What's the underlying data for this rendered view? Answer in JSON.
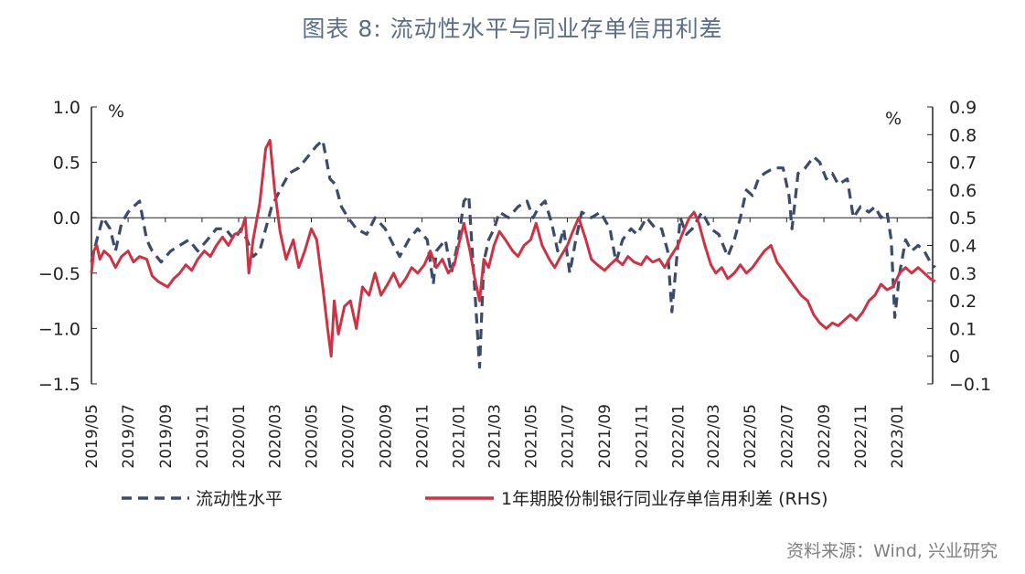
{
  "title": "图表 8:   流动性水平与同业存单信用利差",
  "source": "资料来源：Wind, 兴业研究",
  "colors": {
    "liquidity": "#3b4b6b",
    "spread": "#cc3344"
  },
  "chart_data": {
    "type": "line",
    "left_unit": "%",
    "right_unit": "%",
    "x_tick_labels": [
      "2019/05",
      "2019/07",
      "2019/09",
      "2019/11",
      "2020/01",
      "2020/03",
      "2020/05",
      "2020/07",
      "2020/09",
      "2020/11",
      "2021/01",
      "2021/03",
      "2021/05",
      "2021/07",
      "2021/09",
      "2021/11",
      "2022/01",
      "2022/03",
      "2022/05",
      "2022/07",
      "2022/09",
      "2022/11",
      "2023/01"
    ],
    "x_range": [
      "2019/05",
      "2023/03"
    ],
    "y_left": {
      "ticks": [
        "1.0",
        "0.5",
        "0.0",
        "-0.5",
        "-1.0",
        "-1.5"
      ],
      "range": [
        -1.5,
        1.0
      ]
    },
    "y_right": {
      "ticks": [
        "0.9",
        "0.8",
        "0.7",
        "0.6",
        "0.5",
        "0.4",
        "0.3",
        "0.2",
        "0.1",
        "0",
        "-0.1"
      ],
      "range": [
        -0.1,
        0.9
      ]
    },
    "series": [
      {
        "name": "流动性水平",
        "axis": "left",
        "style": "dashed",
        "points": [
          [
            "2019/05/01",
            -0.4
          ],
          [
            "2019/05/10",
            -0.2
          ],
          [
            "2019/05/20",
            0.0
          ],
          [
            "2019/06/01",
            -0.1
          ],
          [
            "2019/06/10",
            -0.3
          ],
          [
            "2019/06/20",
            -0.05
          ],
          [
            "2019/07/01",
            0.05
          ],
          [
            "2019/07/10",
            0.1
          ],
          [
            "2019/07/20",
            0.15
          ],
          [
            "2019/08/01",
            -0.2
          ],
          [
            "2019/08/10",
            -0.3
          ],
          [
            "2019/08/25",
            -0.4
          ],
          [
            "2019/09/10",
            -0.3
          ],
          [
            "2019/09/25",
            -0.25
          ],
          [
            "2019/10/10",
            -0.2
          ],
          [
            "2019/10/25",
            -0.3
          ],
          [
            "2019/11/10",
            -0.2
          ],
          [
            "2019/11/25",
            -0.1
          ],
          [
            "2019/12/10",
            -0.1
          ],
          [
            "2019/12/25",
            -0.2
          ],
          [
            "2020/01/05",
            -0.1
          ],
          [
            "2020/01/15",
            -0.2
          ],
          [
            "2020/01/25",
            -0.35
          ],
          [
            "2020/02/05",
            -0.3
          ],
          [
            "2020/02/15",
            -0.1
          ],
          [
            "2020/02/25",
            0.1
          ],
          [
            "2020/03/10",
            0.25
          ],
          [
            "2020/03/25",
            0.4
          ],
          [
            "2020/04/10",
            0.45
          ],
          [
            "2020/04/25",
            0.55
          ],
          [
            "2020/05/10",
            0.65
          ],
          [
            "2020/05/20",
            0.7
          ],
          [
            "2020/06/01",
            0.35
          ],
          [
            "2020/06/10",
            0.3
          ],
          [
            "2020/06/20",
            0.1
          ],
          [
            "2020/07/01",
            0.0
          ],
          [
            "2020/07/15",
            -0.1
          ],
          [
            "2020/08/01",
            -0.15
          ],
          [
            "2020/08/15",
            0.0
          ],
          [
            "2020/09/01",
            -0.1
          ],
          [
            "2020/09/15",
            -0.25
          ],
          [
            "2020/09/25",
            -0.35
          ],
          [
            "2020/10/10",
            -0.2
          ],
          [
            "2020/10/25",
            -0.1
          ],
          [
            "2020/11/10",
            -0.2
          ],
          [
            "2020/11/20",
            -0.6
          ],
          [
            "2020/11/25",
            -0.3
          ],
          [
            "2020/12/10",
            -0.2
          ],
          [
            "2020/12/20",
            -0.5
          ],
          [
            "2021/01/01",
            -0.2
          ],
          [
            "2021/01/10",
            0.15
          ],
          [
            "2021/01/18",
            0.2
          ],
          [
            "2021/01/25",
            -0.4
          ],
          [
            "2021/02/01",
            -1.0
          ],
          [
            "2021/02/05",
            -1.35
          ],
          [
            "2021/02/12",
            -0.4
          ],
          [
            "2021/02/20",
            -0.2
          ],
          [
            "2021/03/01",
            -0.1
          ],
          [
            "2021/03/10",
            0.05
          ],
          [
            "2021/03/25",
            0.0
          ],
          [
            "2021/04/10",
            0.1
          ],
          [
            "2021/04/25",
            0.15
          ],
          [
            "2021/05/05",
            0.0
          ],
          [
            "2021/05/15",
            0.1
          ],
          [
            "2021/05/25",
            0.15
          ],
          [
            "2021/06/05",
            -0.05
          ],
          [
            "2021/06/15",
            -0.3
          ],
          [
            "2021/06/25",
            -0.1
          ],
          [
            "2021/07/05",
            -0.5
          ],
          [
            "2021/07/15",
            -0.2
          ],
          [
            "2021/07/25",
            0.05
          ],
          [
            "2021/08/10",
            0.0
          ],
          [
            "2021/08/25",
            0.05
          ],
          [
            "2021/09/10",
            -0.1
          ],
          [
            "2021/09/20",
            -0.4
          ],
          [
            "2021/10/01",
            -0.2
          ],
          [
            "2021/10/15",
            -0.1
          ],
          [
            "2021/10/25",
            -0.15
          ],
          [
            "2021/11/10",
            0.0
          ],
          [
            "2021/11/25",
            -0.1
          ],
          [
            "2021/12/05",
            -0.1
          ],
          [
            "2021/12/15",
            -0.3
          ],
          [
            "2021/12/22",
            -0.85
          ],
          [
            "2021/12/28",
            -0.5
          ],
          [
            "2022/01/05",
            0.0
          ],
          [
            "2022/01/15",
            -0.15
          ],
          [
            "2022/01/25",
            -0.1
          ],
          [
            "2022/02/10",
            0.05
          ],
          [
            "2022/02/25",
            -0.1
          ],
          [
            "2022/03/10",
            -0.15
          ],
          [
            "2022/03/25",
            -0.35
          ],
          [
            "2022/04/05",
            -0.2
          ],
          [
            "2022/04/15",
            0.0
          ],
          [
            "2022/04/25",
            0.25
          ],
          [
            "2022/05/05",
            0.2
          ],
          [
            "2022/05/15",
            0.35
          ],
          [
            "2022/05/25",
            0.4
          ],
          [
            "2022/06/10",
            0.45
          ],
          [
            "2022/06/25",
            0.45
          ],
          [
            "2022/07/05",
            0.2
          ],
          [
            "2022/07/10",
            -0.1
          ],
          [
            "2022/07/20",
            0.4
          ],
          [
            "2022/08/01",
            0.45
          ],
          [
            "2022/08/15",
            0.55
          ],
          [
            "2022/08/25",
            0.5
          ],
          [
            "2022/09/05",
            0.35
          ],
          [
            "2022/09/15",
            0.4
          ],
          [
            "2022/09/25",
            0.3
          ],
          [
            "2022/10/10",
            0.35
          ],
          [
            "2022/10/20",
            0.0
          ],
          [
            "2022/11/01",
            0.1
          ],
          [
            "2022/11/15",
            0.05
          ],
          [
            "2022/11/25",
            0.1
          ],
          [
            "2022/12/05",
            0.0
          ],
          [
            "2022/12/15",
            0.05
          ],
          [
            "2022/12/22",
            -0.2
          ],
          [
            "2022/12/28",
            -0.9
          ],
          [
            "2023/01/05",
            -0.5
          ],
          [
            "2023/01/15",
            -0.2
          ],
          [
            "2023/01/25",
            -0.3
          ],
          [
            "2023/02/05",
            -0.25
          ],
          [
            "2023/02/15",
            -0.3
          ],
          [
            "2023/02/25",
            -0.4
          ],
          [
            "2023/03/05",
            -0.45
          ]
        ]
      },
      {
        "name": "1年期股份制银行同业存单信用利差 (RHS)",
        "axis": "right",
        "style": "solid",
        "points": [
          [
            "2019/05/01",
            0.3
          ],
          [
            "2019/05/05",
            0.38
          ],
          [
            "2019/05/10",
            0.4
          ],
          [
            "2019/05/15",
            0.35
          ],
          [
            "2019/05/22",
            0.38
          ],
          [
            "2019/06/01",
            0.36
          ],
          [
            "2019/06/10",
            0.32
          ],
          [
            "2019/06/20",
            0.36
          ],
          [
            "2019/07/01",
            0.38
          ],
          [
            "2019/07/10",
            0.34
          ],
          [
            "2019/07/20",
            0.36
          ],
          [
            "2019/08/01",
            0.35
          ],
          [
            "2019/08/10",
            0.29
          ],
          [
            "2019/08/20",
            0.27
          ],
          [
            "2019/08/28",
            0.26
          ],
          [
            "2019/09/05",
            0.25
          ],
          [
            "2019/09/15",
            0.28
          ],
          [
            "2019/09/25",
            0.3
          ],
          [
            "2019/10/05",
            0.33
          ],
          [
            "2019/10/15",
            0.31
          ],
          [
            "2019/10/25",
            0.35
          ],
          [
            "2019/11/05",
            0.38
          ],
          [
            "2019/11/15",
            0.36
          ],
          [
            "2019/11/25",
            0.4
          ],
          [
            "2019/12/05",
            0.43
          ],
          [
            "2019/12/15",
            0.4
          ],
          [
            "2019/12/25",
            0.44
          ],
          [
            "2020/01/05",
            0.45
          ],
          [
            "2020/01/12",
            0.5
          ],
          [
            "2020/01/18",
            0.3
          ],
          [
            "2020/01/25",
            0.42
          ],
          [
            "2020/02/05",
            0.55
          ],
          [
            "2020/02/15",
            0.75
          ],
          [
            "2020/02/22",
            0.78
          ],
          [
            "2020/03/01",
            0.6
          ],
          [
            "2020/03/10",
            0.45
          ],
          [
            "2020/03/20",
            0.35
          ],
          [
            "2020/04/01",
            0.42
          ],
          [
            "2020/04/10",
            0.32
          ],
          [
            "2020/04/20",
            0.38
          ],
          [
            "2020/05/01",
            0.46
          ],
          [
            "2020/05/10",
            0.42
          ],
          [
            "2020/05/20",
            0.25
          ],
          [
            "2020/05/28",
            0.1
          ],
          [
            "2020/06/03",
            0.0
          ],
          [
            "2020/06/08",
            0.2
          ],
          [
            "2020/06/15",
            0.08
          ],
          [
            "2020/06/25",
            0.18
          ],
          [
            "2020/07/05",
            0.2
          ],
          [
            "2020/07/15",
            0.1
          ],
          [
            "2020/07/25",
            0.25
          ],
          [
            "2020/08/05",
            0.22
          ],
          [
            "2020/08/15",
            0.3
          ],
          [
            "2020/08/25",
            0.22
          ],
          [
            "2020/09/05",
            0.26
          ],
          [
            "2020/09/15",
            0.3
          ],
          [
            "2020/09/25",
            0.25
          ],
          [
            "2020/10/05",
            0.28
          ],
          [
            "2020/10/15",
            0.32
          ],
          [
            "2020/10/25",
            0.3
          ],
          [
            "2020/11/05",
            0.33
          ],
          [
            "2020/11/15",
            0.38
          ],
          [
            "2020/11/25",
            0.32
          ],
          [
            "2020/12/05",
            0.35
          ],
          [
            "2020/12/15",
            0.3
          ],
          [
            "2020/12/25",
            0.33
          ],
          [
            "2021/01/01",
            0.4
          ],
          [
            "2021/01/10",
            0.48
          ],
          [
            "2021/01/20",
            0.38
          ],
          [
            "2021/01/28",
            0.28
          ],
          [
            "2021/02/05",
            0.2
          ],
          [
            "2021/02/12",
            0.35
          ],
          [
            "2021/02/20",
            0.32
          ],
          [
            "2021/03/01",
            0.4
          ],
          [
            "2021/03/10",
            0.45
          ],
          [
            "2021/03/20",
            0.42
          ],
          [
            "2021/04/01",
            0.38
          ],
          [
            "2021/04/10",
            0.36
          ],
          [
            "2021/04/20",
            0.4
          ],
          [
            "2021/05/01",
            0.42
          ],
          [
            "2021/05/10",
            0.48
          ],
          [
            "2021/05/20",
            0.4
          ],
          [
            "2021/06/01",
            0.35
          ],
          [
            "2021/06/10",
            0.32
          ],
          [
            "2021/06/20",
            0.36
          ],
          [
            "2021/07/01",
            0.4
          ],
          [
            "2021/07/10",
            0.45
          ],
          [
            "2021/07/20",
            0.5
          ],
          [
            "2021/08/01",
            0.42
          ],
          [
            "2021/08/10",
            0.35
          ],
          [
            "2021/08/20",
            0.33
          ],
          [
            "2021/09/01",
            0.31
          ],
          [
            "2021/09/10",
            0.33
          ],
          [
            "2021/09/20",
            0.35
          ],
          [
            "2021/10/01",
            0.33
          ],
          [
            "2021/10/10",
            0.36
          ],
          [
            "2021/10/20",
            0.34
          ],
          [
            "2021/11/01",
            0.33
          ],
          [
            "2021/11/10",
            0.36
          ],
          [
            "2021/11/20",
            0.34
          ],
          [
            "2021/12/01",
            0.35
          ],
          [
            "2021/12/10",
            0.32
          ],
          [
            "2021/12/20",
            0.36
          ],
          [
            "2022/01/01",
            0.4
          ],
          [
            "2022/01/10",
            0.45
          ],
          [
            "2022/01/20",
            0.5
          ],
          [
            "2022/01/28",
            0.52
          ],
          [
            "2022/02/05",
            0.48
          ],
          [
            "2022/02/15",
            0.4
          ],
          [
            "2022/02/25",
            0.33
          ],
          [
            "2022/03/05",
            0.3
          ],
          [
            "2022/03/15",
            0.32
          ],
          [
            "2022/03/25",
            0.28
          ],
          [
            "2022/04/05",
            0.3
          ],
          [
            "2022/04/15",
            0.33
          ],
          [
            "2022/04/25",
            0.3
          ],
          [
            "2022/05/05",
            0.32
          ],
          [
            "2022/05/15",
            0.35
          ],
          [
            "2022/05/25",
            0.38
          ],
          [
            "2022/06/05",
            0.4
          ],
          [
            "2022/06/15",
            0.34
          ],
          [
            "2022/06/25",
            0.31
          ],
          [
            "2022/07/05",
            0.28
          ],
          [
            "2022/07/15",
            0.25
          ],
          [
            "2022/07/25",
            0.22
          ],
          [
            "2022/08/05",
            0.2
          ],
          [
            "2022/08/15",
            0.15
          ],
          [
            "2022/08/25",
            0.12
          ],
          [
            "2022/09/05",
            0.1
          ],
          [
            "2022/09/15",
            0.12
          ],
          [
            "2022/09/25",
            0.11
          ],
          [
            "2022/10/05",
            0.13
          ],
          [
            "2022/10/15",
            0.15
          ],
          [
            "2022/10/25",
            0.13
          ],
          [
            "2022/11/05",
            0.16
          ],
          [
            "2022/11/15",
            0.2
          ],
          [
            "2022/11/25",
            0.22
          ],
          [
            "2022/12/05",
            0.26
          ],
          [
            "2022/12/15",
            0.24
          ],
          [
            "2022/12/25",
            0.25
          ],
          [
            "2023/01/05",
            0.3
          ],
          [
            "2023/01/15",
            0.32
          ],
          [
            "2023/01/25",
            0.3
          ],
          [
            "2023/02/05",
            0.32
          ],
          [
            "2023/02/15",
            0.3
          ],
          [
            "2023/02/25",
            0.28
          ],
          [
            "2023/03/05",
            0.27
          ]
        ]
      }
    ]
  }
}
